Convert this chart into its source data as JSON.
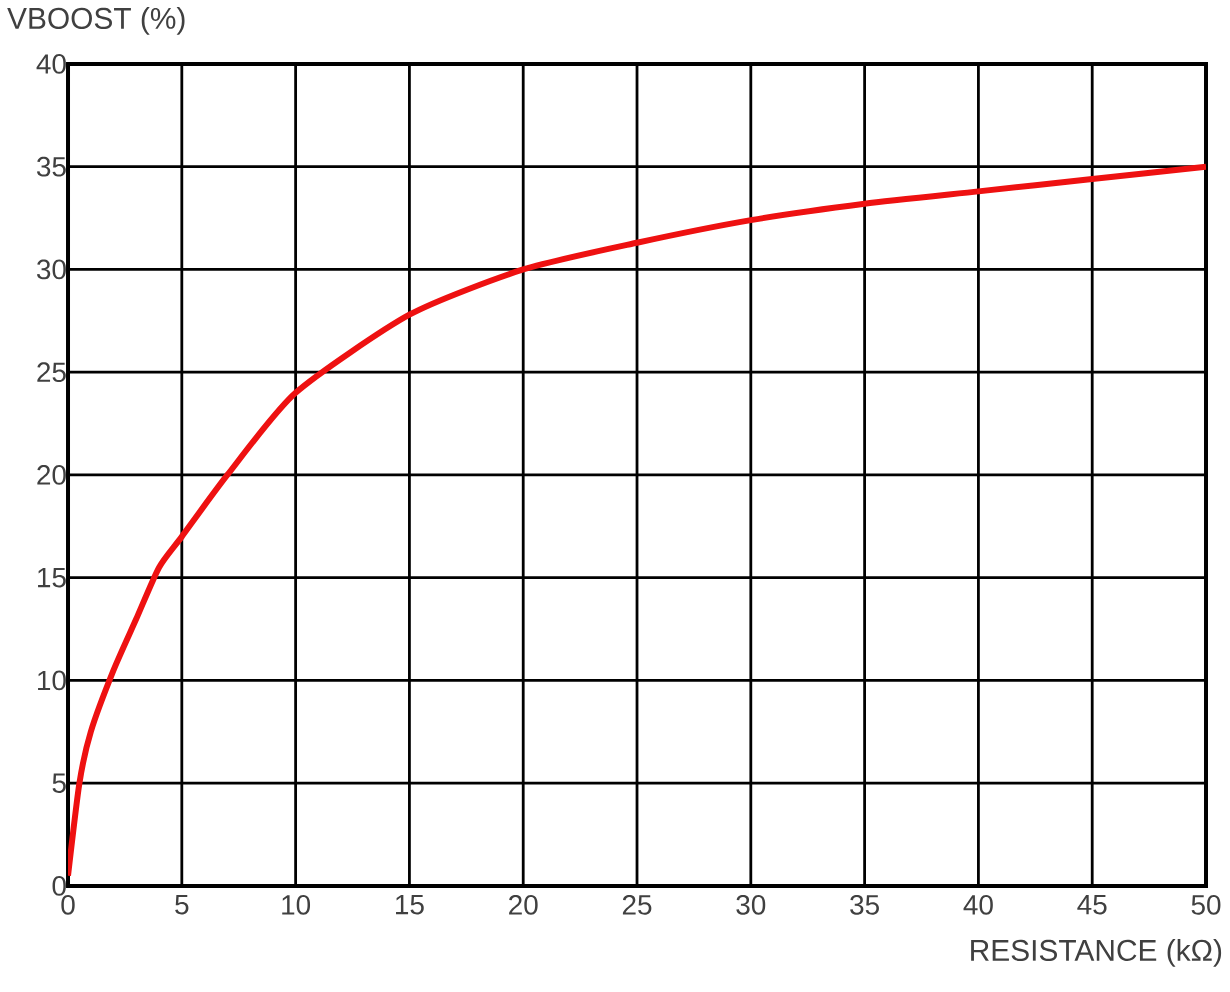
{
  "chart_data": {
    "type": "line",
    "xlabel": "RESISTANCE (kΩ)",
    "ylabel": "VBOOST (%)",
    "x": [
      0,
      0.5,
      1,
      2,
      3,
      4,
      5,
      7,
      10,
      15,
      20,
      25,
      30,
      35,
      40,
      45,
      50
    ],
    "series": [
      {
        "color": "#ee1111",
        "values": [
          0.5,
          5,
          7.5,
          10.5,
          13,
          15.5,
          17,
          20,
          24,
          27.8,
          30,
          31.3,
          32.4,
          33.2,
          33.8,
          34.4,
          35
        ]
      }
    ],
    "xlim": [
      0,
      50
    ],
    "ylim": [
      0,
      40
    ],
    "xticks": [
      0,
      5,
      10,
      15,
      20,
      25,
      30,
      35,
      40,
      45,
      50
    ],
    "yticks": [
      0,
      5,
      10,
      15,
      20,
      25,
      30,
      35,
      40
    ],
    "grid": true,
    "line_style": "solid",
    "marker": "none"
  }
}
